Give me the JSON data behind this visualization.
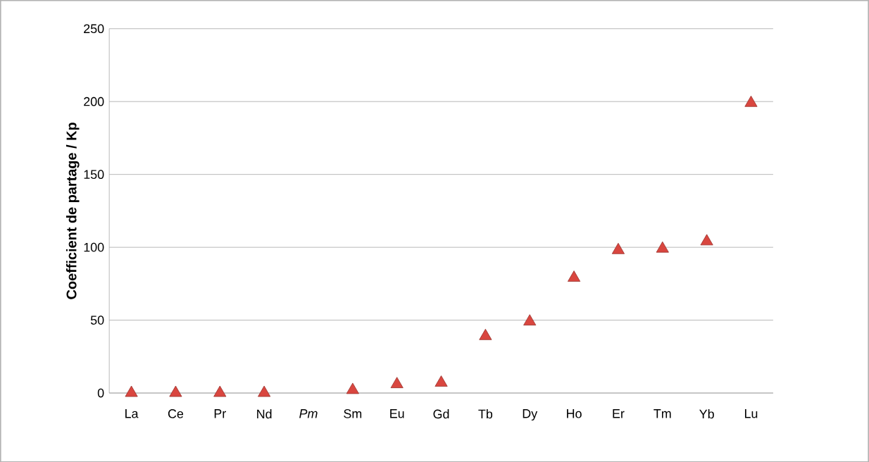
{
  "chart_data": {
    "type": "scatter",
    "ylabel": "Coefficient de partage / Kp",
    "categories": [
      "La",
      "Ce",
      "Pr",
      "Nd",
      "*Pm*",
      "Sm",
      "Eu",
      "Gd",
      "Tb",
      "Dy",
      "Ho",
      "Er",
      "Tm",
      "Yb",
      "Lu"
    ],
    "series": [
      {
        "color": "#d9463f",
        "values": [
          0,
          0,
          0,
          0,
          null,
          2,
          6,
          7,
          39,
          49,
          79,
          98,
          99,
          104,
          199
        ]
      }
    ],
    "ylim": [
      0,
      250
    ],
    "yticks": [
      0,
      50,
      100,
      150,
      200,
      250
    ],
    "grid": "y",
    "marker": "triangle"
  }
}
